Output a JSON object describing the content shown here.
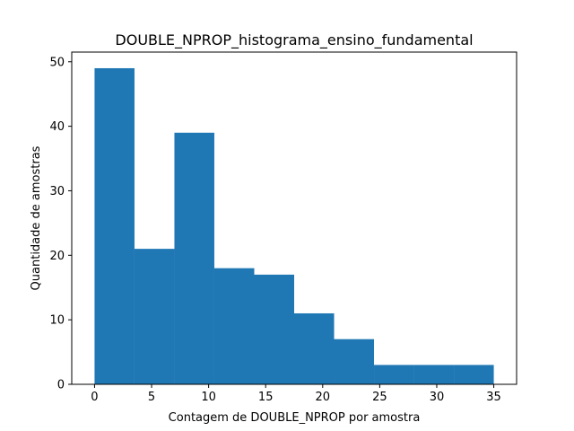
{
  "chart_data": {
    "type": "bar",
    "title": "DOUBLE_NPROP_histograma_ensino_fundamental",
    "xlabel": "Contagem de DOUBLE_NPROP por amostra",
    "ylabel": "Quantidade de amostras",
    "xlim": [
      -2,
      37
    ],
    "ylim": [
      0,
      51.5
    ],
    "bin_edges": [
      0,
      3.5,
      7,
      10.5,
      14,
      17.5,
      21,
      24.5,
      28,
      31.5,
      35
    ],
    "values": [
      49,
      21,
      39,
      18,
      17,
      11,
      7,
      3,
      3,
      3
    ],
    "xticks": [
      0,
      5,
      10,
      15,
      20,
      25,
      30,
      35
    ],
    "yticks": [
      0,
      10,
      20,
      30,
      40,
      50
    ],
    "xtick_labels": [
      "0",
      "5",
      "10",
      "15",
      "20",
      "25",
      "30",
      "35"
    ],
    "ytick_labels": [
      "0",
      "10",
      "20",
      "30",
      "40",
      "50"
    ],
    "bar_color": "#1f77b4",
    "grid": false,
    "legend": "none"
  }
}
